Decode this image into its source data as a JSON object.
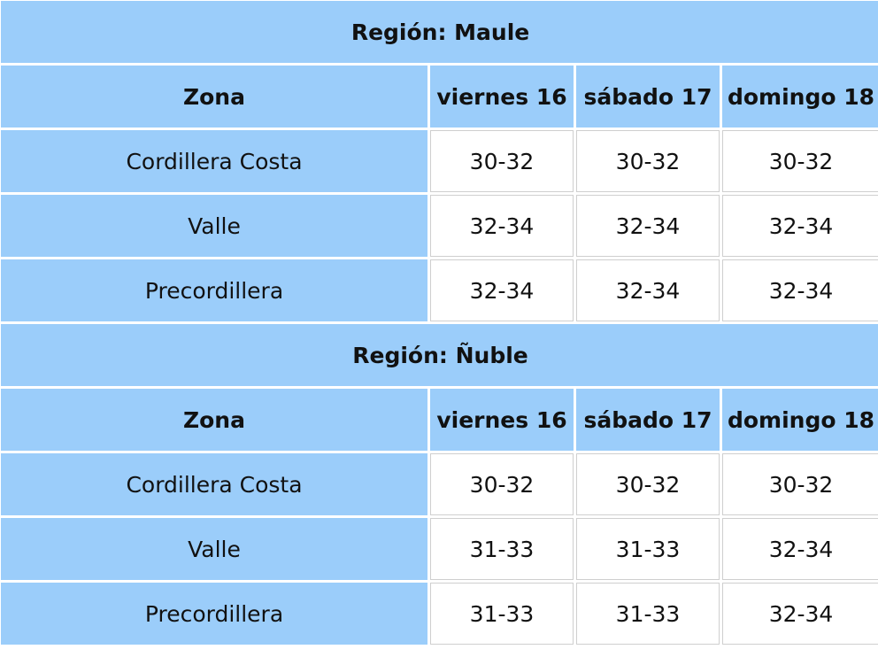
{
  "regions": [
    {
      "title": "Región: Maule",
      "headers": [
        "Zona",
        "viernes 16",
        "sábado 17",
        "domingo 18"
      ],
      "rows": [
        {
          "zona": "Cordillera Costa",
          "values": [
            "30-32",
            "30-32",
            "30-32"
          ]
        },
        {
          "zona": "Valle",
          "values": [
            "32-34",
            "32-34",
            "32-34"
          ]
        },
        {
          "zona": "Precordillera",
          "values": [
            "32-34",
            "32-34",
            "32-34"
          ]
        }
      ]
    },
    {
      "title": "Región: Ñuble",
      "headers": [
        "Zona",
        "viernes 16",
        "sábado 17",
        "domingo 18"
      ],
      "rows": [
        {
          "zona": "Cordillera Costa",
          "values": [
            "30-32",
            "30-32",
            "30-32"
          ]
        },
        {
          "zona": "Valle",
          "values": [
            "31-33",
            "31-33",
            "32-34"
          ]
        },
        {
          "zona": "Precordillera",
          "values": [
            "31-33",
            "31-33",
            "32-34"
          ]
        }
      ]
    }
  ],
  "colors": {
    "header_bg": "#9bcdfa",
    "cell_bg": "#ffffff",
    "cell_border": "#cfcfcf"
  }
}
